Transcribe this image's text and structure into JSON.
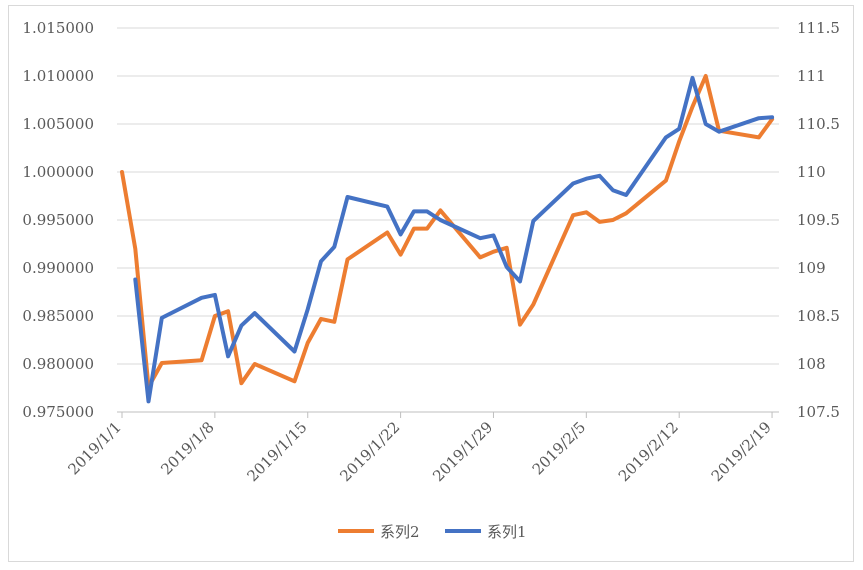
{
  "chart_data": {
    "type": "line",
    "title": "",
    "xlabel": "",
    "ylabel": "",
    "x_tick_labels": [
      "2019/1/1",
      "2019/1/8",
      "2019/1/15",
      "2019/1/22",
      "2019/1/29",
      "2019/2/5",
      "2019/2/12",
      "2019/2/19"
    ],
    "y_left": {
      "ylim": [
        0.975,
        1.015
      ],
      "ticks": [
        "0.975000",
        "0.980000",
        "0.985000",
        "0.990000",
        "0.995000",
        "1.000000",
        "1.005000",
        "1.010000",
        "1.015000"
      ]
    },
    "y_right": {
      "ylim": [
        107.5,
        111.5
      ],
      "ticks": [
        "107.5",
        "108",
        "108.5",
        "109",
        "109.5",
        "110",
        "110.5",
        "111",
        "111.5"
      ]
    },
    "grid": "horizontal",
    "legend": "bottom",
    "series": [
      {
        "name": "系列2",
        "axis": "left",
        "color": "#ED7D31",
        "points": [
          [
            "2019/1/1",
            1.0
          ],
          [
            "2019/1/2",
            0.992
          ],
          [
            "2019/1/3",
            0.9776
          ],
          [
            "2019/1/4",
            0.9801
          ],
          [
            "2019/1/7",
            0.9804
          ],
          [
            "2019/1/8",
            0.985
          ],
          [
            "2019/1/9",
            0.9855
          ],
          [
            "2019/1/10",
            0.978
          ],
          [
            "2019/1/11",
            0.98
          ],
          [
            "2019/1/14",
            0.9782
          ],
          [
            "2019/1/15",
            0.9822
          ],
          [
            "2019/1/16",
            0.9847
          ],
          [
            "2019/1/17",
            0.9844
          ],
          [
            "2019/1/18",
            0.9909
          ],
          [
            "2019/1/21",
            0.9937
          ],
          [
            "2019/1/22",
            0.9914
          ],
          [
            "2019/1/23",
            0.9941
          ],
          [
            "2019/1/24",
            0.9941
          ],
          [
            "2019/1/25",
            0.996
          ],
          [
            "2019/1/28",
            0.9911
          ],
          [
            "2019/1/29",
            0.9917
          ],
          [
            "2019/1/30",
            0.9921
          ],
          [
            "2019/1/31",
            0.9841
          ],
          [
            "2019/2/1",
            0.9862
          ],
          [
            "2019/2/4",
            0.9955
          ],
          [
            "2019/2/5",
            0.9958
          ],
          [
            "2019/2/6",
            0.9948
          ],
          [
            "2019/2/7",
            0.995
          ],
          [
            "2019/2/8",
            0.9957
          ],
          [
            "2019/2/11",
            0.9991
          ],
          [
            "2019/2/12",
            1.0032
          ],
          [
            "2019/2/13",
            1.0068
          ],
          [
            "2019/2/14",
            1.01
          ],
          [
            "2019/2/15",
            1.0043
          ],
          [
            "2019/2/18",
            1.0036
          ],
          [
            "2019/2/19",
            1.0055
          ]
        ]
      },
      {
        "name": "系列1",
        "axis": "right",
        "color": "#4472C4",
        "points": [
          [
            "2019/1/2",
            108.88
          ],
          [
            "2019/1/3",
            107.61
          ],
          [
            "2019/1/4",
            108.48
          ],
          [
            "2019/1/7",
            108.69
          ],
          [
            "2019/1/8",
            108.72
          ],
          [
            "2019/1/9",
            108.08
          ],
          [
            "2019/1/10",
            108.4
          ],
          [
            "2019/1/11",
            108.53
          ],
          [
            "2019/1/14",
            108.13
          ],
          [
            "2019/1/15",
            108.57
          ],
          [
            "2019/1/16",
            109.07
          ],
          [
            "2019/1/17",
            109.22
          ],
          [
            "2019/1/18",
            109.74
          ],
          [
            "2019/1/21",
            109.64
          ],
          [
            "2019/1/22",
            109.35
          ],
          [
            "2019/1/23",
            109.59
          ],
          [
            "2019/1/24",
            109.59
          ],
          [
            "2019/1/25",
            109.5
          ],
          [
            "2019/1/28",
            109.31
          ],
          [
            "2019/1/29",
            109.34
          ],
          [
            "2019/1/30",
            109.01
          ],
          [
            "2019/1/31",
            108.86
          ],
          [
            "2019/2/1",
            109.49
          ],
          [
            "2019/2/4",
            109.88
          ],
          [
            "2019/2/5",
            109.93
          ],
          [
            "2019/2/6",
            109.96
          ],
          [
            "2019/2/7",
            109.81
          ],
          [
            "2019/2/8",
            109.76
          ],
          [
            "2019/2/11",
            110.36
          ],
          [
            "2019/2/12",
            110.45
          ],
          [
            "2019/2/13",
            110.98
          ],
          [
            "2019/2/14",
            110.5
          ],
          [
            "2019/2/15",
            110.42
          ],
          [
            "2019/2/18",
            110.56
          ],
          [
            "2019/2/19",
            110.57
          ]
        ]
      }
    ]
  }
}
